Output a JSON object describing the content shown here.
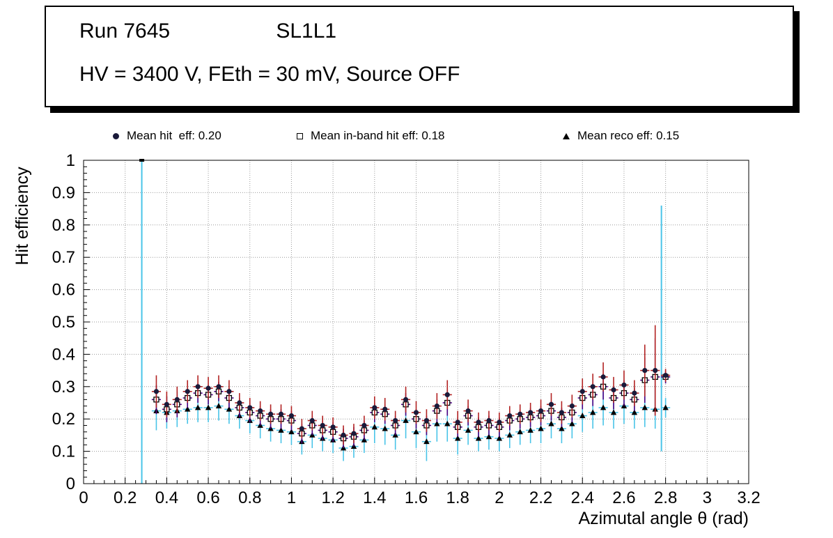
{
  "header": {
    "run_label": "Run 7645",
    "chamber_label": "SL1L1",
    "conditions": "HV = 3400 V, FEth = 30 mV, Source OFF"
  },
  "legend": [
    {
      "marker": "filled-circle",
      "label": "Mean hit  eff: 0.20"
    },
    {
      "marker": "open-square",
      "label": "Mean in-band hit eff: 0.18"
    },
    {
      "marker": "filled-triangle",
      "label": "Mean reco eff: 0.15"
    }
  ],
  "chart_data": {
    "type": "scatter",
    "title": "",
    "xlabel": "Azimutal angle θ (rad)",
    "ylabel": "Hit efficiency",
    "xlim": [
      0,
      3.2
    ],
    "ylim": [
      0,
      1
    ],
    "xticks": [
      0,
      0.2,
      0.4,
      0.6,
      0.8,
      1,
      1.2,
      1.4,
      1.6,
      1.8,
      2,
      2.2,
      2.4,
      2.6,
      2.8,
      3,
      3.2
    ],
    "yticks": [
      0,
      0.1,
      0.2,
      0.3,
      0.4,
      0.5,
      0.6,
      0.7,
      0.8,
      0.9,
      1
    ],
    "grid": "dotted",
    "grid_color": "#999999",
    "xerr": 0.022,
    "x": [
      0.35,
      0.4,
      0.45,
      0.5,
      0.55,
      0.6,
      0.65,
      0.7,
      0.75,
      0.8,
      0.85,
      0.9,
      0.95,
      1,
      1.05,
      1.1,
      1.15,
      1.2,
      1.25,
      1.3,
      1.35,
      1.4,
      1.45,
      1.5,
      1.55,
      1.6,
      1.65,
      1.7,
      1.75,
      1.8,
      1.85,
      1.9,
      1.95,
      2,
      2.05,
      2.1,
      2.15,
      2.2,
      2.25,
      2.3,
      2.35,
      2.4,
      2.45,
      2.5,
      2.55,
      2.6,
      2.65,
      2.7,
      2.75,
      2.8
    ],
    "series": [
      {
        "name": "Mean hit eff",
        "mean": 0.2,
        "marker": "filled-circle",
        "marker_color": "#1a1a3a",
        "error_color": "#b22222",
        "values": [
          0.285,
          0.245,
          0.26,
          0.285,
          0.3,
          0.295,
          0.3,
          0.285,
          0.25,
          0.235,
          0.225,
          0.215,
          0.215,
          0.21,
          0.17,
          0.195,
          0.18,
          0.175,
          0.15,
          0.155,
          0.18,
          0.235,
          0.23,
          0.195,
          0.26,
          0.22,
          0.195,
          0.24,
          0.275,
          0.19,
          0.225,
          0.19,
          0.195,
          0.19,
          0.21,
          0.215,
          0.22,
          0.225,
          0.245,
          0.22,
          0.24,
          0.285,
          0.3,
          0.33,
          0.29,
          0.305,
          0.28,
          0.35,
          0.35,
          0.335
        ],
        "yerr": [
          0.05,
          0.04,
          0.04,
          0.035,
          0.035,
          0.035,
          0.035,
          0.035,
          0.03,
          0.03,
          0.03,
          0.03,
          0.03,
          0.03,
          0.03,
          0.03,
          0.03,
          0.03,
          0.03,
          0.03,
          0.03,
          0.035,
          0.035,
          0.03,
          0.04,
          0.035,
          0.035,
          0.04,
          0.045,
          0.035,
          0.035,
          0.03,
          0.03,
          0.03,
          0.03,
          0.03,
          0.03,
          0.035,
          0.035,
          0.035,
          0.035,
          0.04,
          0.04,
          0.045,
          0.04,
          0.045,
          0.04,
          0.08,
          0.14,
          0.02
        ]
      },
      {
        "name": "Mean in-band hit eff",
        "mean": 0.18,
        "marker": "open-square",
        "marker_color": "#000000",
        "error_color": "#4b0082",
        "values": [
          0.26,
          0.23,
          0.245,
          0.265,
          0.28,
          0.275,
          0.285,
          0.265,
          0.235,
          0.22,
          0.21,
          0.2,
          0.2,
          0.195,
          0.155,
          0.18,
          0.165,
          0.16,
          0.14,
          0.145,
          0.165,
          0.22,
          0.215,
          0.18,
          0.245,
          0.2,
          0.18,
          0.225,
          0.25,
          0.175,
          0.21,
          0.175,
          0.18,
          0.175,
          0.195,
          0.2,
          0.205,
          0.21,
          0.225,
          0.205,
          0.22,
          0.265,
          0.275,
          0.3,
          0.265,
          0.28,
          0.26,
          0.32,
          0.33,
          0.33
        ],
        "yerr": [
          0.045,
          0.04,
          0.04,
          0.03,
          0.03,
          0.03,
          0.03,
          0.03,
          0.03,
          0.03,
          0.03,
          0.03,
          0.03,
          0.03,
          0.03,
          0.03,
          0.03,
          0.03,
          0.03,
          0.03,
          0.03,
          0.03,
          0.03,
          0.03,
          0.035,
          0.03,
          0.03,
          0.035,
          0.04,
          0.03,
          0.03,
          0.03,
          0.03,
          0.03,
          0.03,
          0.03,
          0.03,
          0.03,
          0.03,
          0.03,
          0.03,
          0.035,
          0.035,
          0.04,
          0.035,
          0.04,
          0.035,
          0.07,
          0.12,
          0.02
        ]
      },
      {
        "name": "Mean reco eff",
        "mean": 0.15,
        "marker": "filled-triangle",
        "marker_color": "#000000",
        "error_color": "#49c4e8",
        "values": [
          0.225,
          0.22,
          0.225,
          0.23,
          0.235,
          0.235,
          0.24,
          0.23,
          0.21,
          0.195,
          0.18,
          0.17,
          0.165,
          0.16,
          0.13,
          0.15,
          0.14,
          0.135,
          0.11,
          0.115,
          0.135,
          0.175,
          0.17,
          0.15,
          0.195,
          0.16,
          0.13,
          0.185,
          0.185,
          0.14,
          0.165,
          0.14,
          0.145,
          0.14,
          0.15,
          0.16,
          0.165,
          0.17,
          0.185,
          0.17,
          0.185,
          0.21,
          0.22,
          0.235,
          0.22,
          0.24,
          0.22,
          0.235,
          0.23,
          0.235
        ],
        "yerr": [
          0.06,
          0.05,
          0.05,
          0.045,
          0.045,
          0.045,
          0.045,
          0.045,
          0.04,
          0.04,
          0.04,
          0.04,
          0.04,
          0.04,
          0.04,
          0.04,
          0.04,
          0.04,
          0.04,
          0.035,
          0.04,
          0.05,
          0.05,
          0.045,
          0.055,
          0.05,
          0.06,
          0.055,
          0.055,
          0.05,
          0.045,
          0.04,
          0.04,
          0.04,
          0.04,
          0.04,
          0.04,
          0.045,
          0.045,
          0.045,
          0.045,
          0.05,
          0.05,
          0.055,
          0.05,
          0.055,
          0.05,
          0.06,
          0.06,
          0.03
        ]
      }
    ],
    "outliers": [
      {
        "x": 0.28,
        "line": [
          0.0,
          1.0
        ],
        "marker_y": 1.0,
        "color": "#49c4e8"
      },
      {
        "x": 2.78,
        "line": [
          0.1,
          0.86
        ],
        "marker_y": null,
        "color": "#49c4e8"
      }
    ]
  }
}
